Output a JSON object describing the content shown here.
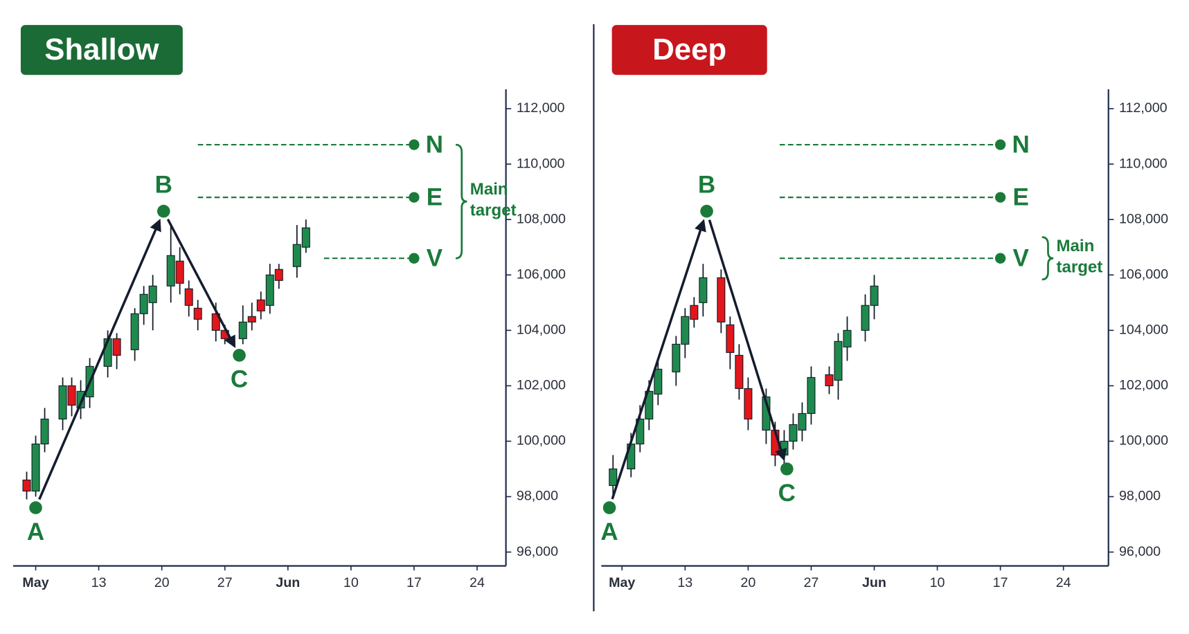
{
  "chart_data": [
    {
      "type": "candlestick",
      "title": "Shallow",
      "title_color": "#1a6b35",
      "xlim": [
        -2.5,
        52.2
      ],
      "ylim": [
        95500,
        112700
      ],
      "xticks": [
        {
          "value": 0,
          "label": "May"
        },
        {
          "value": 7,
          "label": "13"
        },
        {
          "value": 14,
          "label": "20"
        },
        {
          "value": 21,
          "label": "27"
        },
        {
          "value": 28,
          "label": "Jun"
        },
        {
          "value": 35,
          "label": "10"
        },
        {
          "value": 42,
          "label": "17"
        },
        {
          "value": 49,
          "label": "24"
        }
      ],
      "yticks": [
        {
          "value": 96000,
          "label": "96,000"
        },
        {
          "value": 98000,
          "label": "98,000"
        },
        {
          "value": 100000,
          "label": "100,000"
        },
        {
          "value": 102000,
          "label": "102,000"
        },
        {
          "value": 104000,
          "label": "104,000"
        },
        {
          "value": 106000,
          "label": "106,000"
        },
        {
          "value": 108000,
          "label": "108,000"
        },
        {
          "value": 110000,
          "label": "110,000"
        },
        {
          "value": 112000,
          "label": "112,000"
        }
      ],
      "up_color": "#1f8a4d",
      "down_color": "#e3161c",
      "accent_color": "#1a7a3a",
      "x": [
        -1,
        0,
        1,
        3,
        4,
        5,
        6,
        8,
        9,
        11,
        12,
        13,
        15,
        16,
        17,
        18,
        20,
        21,
        23,
        24,
        25,
        26,
        27,
        29,
        30
      ],
      "open": [
        98600,
        98200,
        99900,
        100800,
        102000,
        101200,
        101600,
        102700,
        103700,
        103300,
        104600,
        105000,
        105600,
        106500,
        105500,
        104800,
        104600,
        104000,
        103700,
        104500,
        105100,
        104900,
        106200,
        106300,
        107000
      ],
      "high": [
        98900,
        100200,
        101200,
        102300,
        102300,
        102200,
        103000,
        104000,
        103900,
        104800,
        105600,
        106000,
        107800,
        107000,
        105800,
        105100,
        105000,
        104200,
        104900,
        105000,
        105400,
        106400,
        106400,
        107800,
        108000
      ],
      "low": [
        97900,
        98000,
        99600,
        100400,
        100900,
        100800,
        101200,
        102300,
        102600,
        102900,
        104200,
        104000,
        105000,
        105300,
        104500,
        104000,
        103600,
        103500,
        103500,
        104000,
        104400,
        104600,
        105500,
        105900,
        106800
      ],
      "close": [
        98200,
        99900,
        100800,
        102000,
        101300,
        101800,
        102700,
        103700,
        103100,
        104600,
        105300,
        105600,
        106700,
        105700,
        104900,
        104400,
        104000,
        103700,
        104300,
        104300,
        104700,
        106000,
        105800,
        107100,
        107700
      ],
      "points": [
        {
          "label": "A",
          "x": 0,
          "y": 97600
        },
        {
          "label": "B",
          "x": 14.2,
          "y": 108300
        },
        {
          "label": "C",
          "x": 22.6,
          "y": 103100
        }
      ],
      "levels": [
        {
          "label": "N",
          "value": 110700,
          "x_start": 18,
          "x_end": 42
        },
        {
          "label": "E",
          "value": 108800,
          "x_start": 18,
          "x_end": 42
        },
        {
          "label": "V",
          "value": 106600,
          "x_start": 32,
          "x_end": 42
        }
      ],
      "main_target": {
        "text": "Main target",
        "levels": [
          "N",
          "V"
        ]
      }
    },
    {
      "type": "candlestick",
      "title": "Deep",
      "title_color": "#c8161d",
      "xlim": [
        -2.3,
        54
      ],
      "ylim": [
        95500,
        112700
      ],
      "xticks": [
        {
          "value": 0,
          "label": "May"
        },
        {
          "value": 7,
          "label": "13"
        },
        {
          "value": 14,
          "label": "20"
        },
        {
          "value": 21,
          "label": "27"
        },
        {
          "value": 28,
          "label": "Jun"
        },
        {
          "value": 35,
          "label": "10"
        },
        {
          "value": 42,
          "label": "17"
        },
        {
          "value": 49,
          "label": "24"
        }
      ],
      "yticks": [
        {
          "value": 96000,
          "label": "96,000"
        },
        {
          "value": 98000,
          "label": "98,000"
        },
        {
          "value": 100000,
          "label": "100,000"
        },
        {
          "value": 102000,
          "label": "102,000"
        },
        {
          "value": 104000,
          "label": "104,000"
        },
        {
          "value": 106000,
          "label": "106,000"
        },
        {
          "value": 108000,
          "label": "108,000"
        },
        {
          "value": 110000,
          "label": "110,000"
        },
        {
          "value": 112000,
          "label": "112,000"
        }
      ],
      "up_color": "#1f8a4d",
      "down_color": "#e3161c",
      "accent_color": "#1a7a3a",
      "x": [
        -1,
        1,
        2,
        3,
        4,
        6,
        7,
        8,
        9,
        11,
        12,
        13,
        14,
        16,
        17,
        18,
        19,
        20,
        21,
        23,
        24,
        25,
        27,
        28
      ],
      "open": [
        98400,
        99000,
        99900,
        100800,
        101700,
        102500,
        103500,
        104900,
        105000,
        105900,
        104200,
        103100,
        101900,
        100400,
        100400,
        99500,
        100000,
        100400,
        101000,
        102400,
        102200,
        103400,
        104000,
        104900
      ],
      "high": [
        99500,
        100300,
        101300,
        102200,
        103000,
        103800,
        104800,
        105200,
        106400,
        106200,
        104500,
        103500,
        102300,
        101900,
        100700,
        100400,
        101000,
        101400,
        102700,
        102700,
        103900,
        104500,
        105300,
        106000
      ],
      "low": [
        98000,
        98700,
        99600,
        100400,
        101300,
        102000,
        103000,
        104100,
        104500,
        103900,
        102600,
        101500,
        100400,
        99900,
        99100,
        99100,
        99700,
        100000,
        100600,
        101700,
        101500,
        102900,
        103600,
        104400
      ],
      "close": [
        99000,
        99900,
        100800,
        101800,
        102600,
        103500,
        104500,
        104400,
        105900,
        104300,
        103200,
        101900,
        100800,
        101600,
        99500,
        100000,
        100600,
        101000,
        102300,
        102000,
        103600,
        104000,
        104900,
        105600
      ],
      "points": [
        {
          "label": "A",
          "x": -1.4,
          "y": 97600
        },
        {
          "label": "B",
          "x": 9.4,
          "y": 108300
        },
        {
          "label": "C",
          "x": 18.3,
          "y": 99000
        }
      ],
      "levels": [
        {
          "label": "N",
          "value": 110700,
          "x_start": 17.5,
          "x_end": 42
        },
        {
          "label": "E",
          "value": 108800,
          "x_start": 17.5,
          "x_end": 42
        },
        {
          "label": "V",
          "value": 106600,
          "x_start": 17.5,
          "x_end": 42
        }
      ],
      "main_target": {
        "text": "Main target",
        "levels": [
          "V"
        ]
      }
    }
  ]
}
